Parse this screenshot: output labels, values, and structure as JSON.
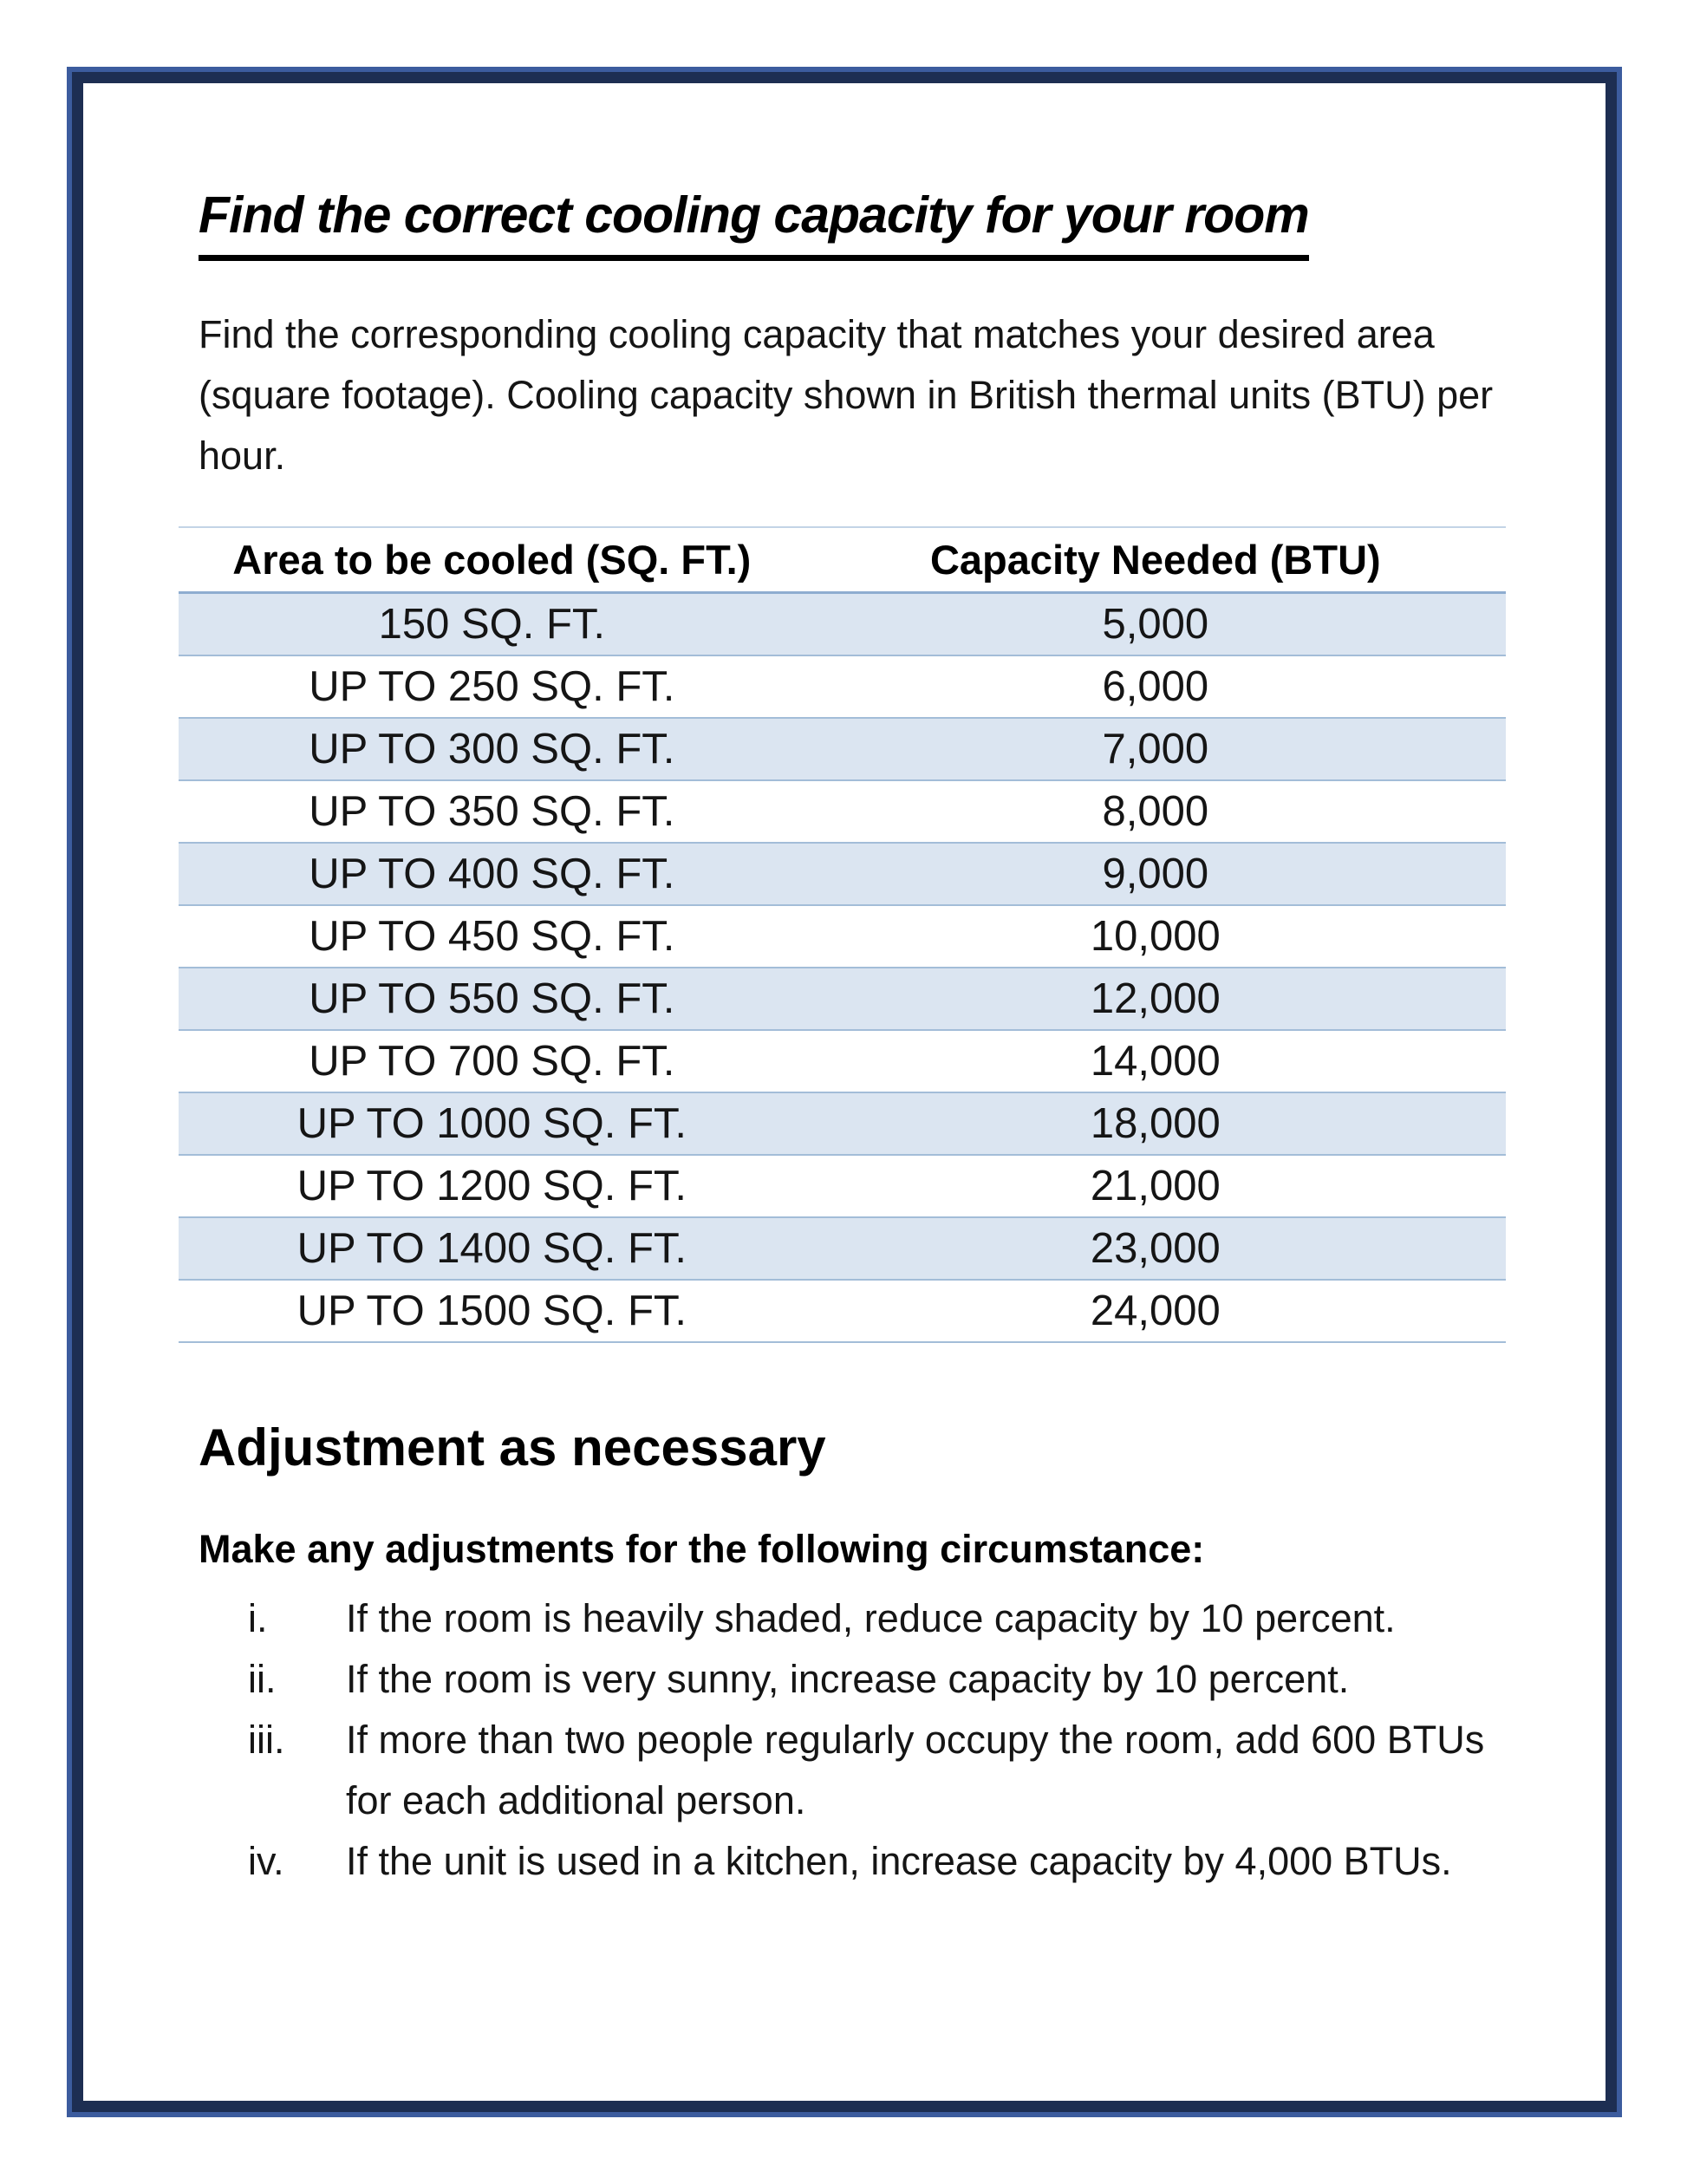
{
  "document": {
    "title": "Find the correct cooling capacity for your room",
    "intro": "Find the corresponding cooling capacity that matches your desired area (square footage). Cooling capacity shown in British thermal units (BTU) per hour.",
    "section_heading": "Adjustment as necessary",
    "adjustments_lead": "Make any adjustments for the following circumstance:"
  },
  "capacity_table": {
    "columns": [
      "Area to be cooled (SQ. FT.)",
      "Capacity Needed (BTU)"
    ],
    "rows": [
      {
        "area": "150 SQ. FT.",
        "capacity": "5,000"
      },
      {
        "area": "UP TO 250 SQ. FT.",
        "capacity": "6,000"
      },
      {
        "area": "UP TO 300 SQ. FT.",
        "capacity": "7,000"
      },
      {
        "area": "UP TO 350 SQ. FT.",
        "capacity": "8,000"
      },
      {
        "area": "UP TO 400 SQ. FT.",
        "capacity": "9,000"
      },
      {
        "area": "UP TO 450 SQ. FT.",
        "capacity": "10,000"
      },
      {
        "area": "UP TO 550 SQ. FT.",
        "capacity": "12,000"
      },
      {
        "area": "UP TO 700 SQ. FT.",
        "capacity": "14,000"
      },
      {
        "area": "UP TO 1000 SQ. FT.",
        "capacity": "18,000"
      },
      {
        "area": "UP TO 1200 SQ. FT.",
        "capacity": "21,000"
      },
      {
        "area": "UP TO 1400 SQ. FT.",
        "capacity": "23,000"
      },
      {
        "area": "UP TO 1500 SQ. FT.",
        "capacity": "24,000"
      }
    ]
  },
  "adjustments": [
    {
      "numeral": "i.",
      "text": "If the room is heavily shaded, reduce capacity by 10 percent."
    },
    {
      "numeral": "ii.",
      "text": "If the room is very sunny, increase capacity by 10 percent."
    },
    {
      "numeral": "iii.",
      "text": "If more than two people regularly occupy the room, add 600 BTUs for each additional person."
    },
    {
      "numeral": "iv.",
      "text": "If the unit is used in a kitchen, increase capacity by 4,000 BTUs."
    }
  ],
  "colors": {
    "page_border_outer": "#3c5c9e",
    "page_border_inner": "#1d2e52",
    "table_stripe": "#dbe5f1",
    "table_rule": "#a3bdd8",
    "table_header_rule": "#8eadd0",
    "table_top_rule": "#c3d4e6",
    "text": "#151515"
  }
}
